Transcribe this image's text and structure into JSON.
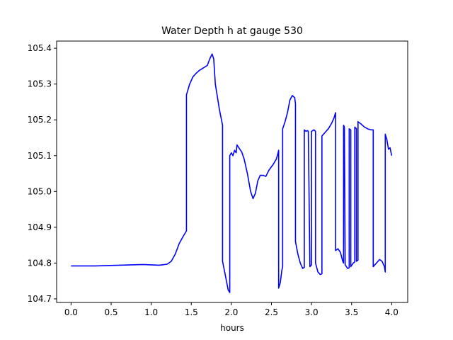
{
  "chart_data": {
    "type": "line",
    "title": "Water Depth h at gauge 530",
    "xlabel": "hours",
    "ylabel": "",
    "xlim": [
      -0.18,
      4.2
    ],
    "ylim": [
      104.69,
      105.42
    ],
    "grid": false,
    "xticks": [
      0.0,
      0.5,
      1.0,
      1.5,
      2.0,
      2.5,
      3.0,
      3.5,
      4.0
    ],
    "xtick_labels": [
      "0.0",
      "0.5",
      "1.0",
      "1.5",
      "2.0",
      "2.5",
      "3.0",
      "3.5",
      "4.0"
    ],
    "yticks": [
      104.7,
      104.8,
      104.9,
      105.0,
      105.1,
      105.2,
      105.3,
      105.4
    ],
    "ytick_labels": [
      "104.7",
      "104.8",
      "104.9",
      "105.0",
      "105.1",
      "105.2",
      "105.3",
      "105.4"
    ],
    "series": [
      {
        "name": "",
        "color": "#0000ff",
        "points": [
          [
            0.0,
            104.792
          ],
          [
            0.3,
            104.792
          ],
          [
            0.6,
            104.794
          ],
          [
            0.9,
            104.796
          ],
          [
            1.0,
            104.795
          ],
          [
            1.1,
            104.794
          ],
          [
            1.2,
            104.797
          ],
          [
            1.25,
            104.805
          ],
          [
            1.3,
            104.825
          ],
          [
            1.35,
            104.855
          ],
          [
            1.4,
            104.875
          ],
          [
            1.44,
            104.89
          ],
          [
            1.44,
            105.27
          ],
          [
            1.48,
            105.3
          ],
          [
            1.52,
            105.32
          ],
          [
            1.56,
            105.33
          ],
          [
            1.6,
            105.338
          ],
          [
            1.65,
            105.345
          ],
          [
            1.7,
            105.352
          ],
          [
            1.73,
            105.37
          ],
          [
            1.76,
            105.384
          ],
          [
            1.78,
            105.37
          ],
          [
            1.8,
            105.3
          ],
          [
            1.85,
            105.23
          ],
          [
            1.89,
            105.185
          ],
          [
            1.89,
            104.805
          ],
          [
            1.93,
            104.76
          ],
          [
            1.96,
            104.725
          ],
          [
            1.98,
            104.718
          ],
          [
            1.98,
            105.1
          ],
          [
            2.0,
            105.108
          ],
          [
            2.02,
            105.1
          ],
          [
            2.04,
            105.115
          ],
          [
            2.06,
            105.108
          ],
          [
            2.07,
            105.13
          ],
          [
            2.1,
            105.12
          ],
          [
            2.13,
            105.11
          ],
          [
            2.16,
            105.09
          ],
          [
            2.2,
            105.05
          ],
          [
            2.24,
            105.0
          ],
          [
            2.27,
            104.98
          ],
          [
            2.3,
            104.995
          ],
          [
            2.33,
            105.03
          ],
          [
            2.36,
            105.045
          ],
          [
            2.4,
            105.045
          ],
          [
            2.43,
            105.042
          ],
          [
            2.47,
            105.06
          ],
          [
            2.52,
            105.075
          ],
          [
            2.56,
            105.09
          ],
          [
            2.58,
            105.105
          ],
          [
            2.59,
            105.115
          ],
          [
            2.59,
            104.73
          ],
          [
            2.61,
            104.745
          ],
          [
            2.63,
            104.78
          ],
          [
            2.64,
            104.79
          ],
          [
            2.64,
            105.175
          ],
          [
            2.67,
            105.195
          ],
          [
            2.7,
            105.22
          ],
          [
            2.73,
            105.255
          ],
          [
            2.76,
            105.268
          ],
          [
            2.79,
            105.262
          ],
          [
            2.8,
            105.245
          ],
          [
            2.8,
            104.86
          ],
          [
            2.83,
            104.825
          ],
          [
            2.86,
            104.8
          ],
          [
            2.89,
            104.785
          ],
          [
            2.91,
            104.788
          ],
          [
            2.91,
            105.172
          ],
          [
            2.93,
            105.168
          ],
          [
            2.95,
            105.17
          ],
          [
            2.96,
            105.168
          ],
          [
            2.98,
            104.79
          ],
          [
            3.0,
            104.795
          ],
          [
            3.0,
            105.168
          ],
          [
            3.03,
            105.172
          ],
          [
            3.05,
            105.168
          ],
          [
            3.05,
            104.8
          ],
          [
            3.08,
            104.775
          ],
          [
            3.11,
            104.768
          ],
          [
            3.13,
            104.77
          ],
          [
            3.13,
            105.155
          ],
          [
            3.17,
            105.165
          ],
          [
            3.21,
            105.175
          ],
          [
            3.25,
            105.19
          ],
          [
            3.28,
            105.205
          ],
          [
            3.3,
            105.22
          ],
          [
            3.3,
            104.835
          ],
          [
            3.33,
            104.84
          ],
          [
            3.36,
            104.83
          ],
          [
            3.39,
            104.805
          ],
          [
            3.4,
            104.8
          ],
          [
            3.4,
            105.185
          ],
          [
            3.41,
            105.18
          ],
          [
            3.42,
            104.795
          ],
          [
            3.45,
            104.785
          ],
          [
            3.47,
            104.787
          ],
          [
            3.47,
            105.175
          ],
          [
            3.49,
            105.172
          ],
          [
            3.49,
            104.79
          ],
          [
            3.52,
            104.8
          ],
          [
            3.54,
            104.803
          ],
          [
            3.54,
            105.18
          ],
          [
            3.56,
            105.175
          ],
          [
            3.56,
            104.805
          ],
          [
            3.58,
            104.808
          ],
          [
            3.58,
            105.195
          ],
          [
            3.62,
            105.188
          ],
          [
            3.66,
            105.18
          ],
          [
            3.7,
            105.175
          ],
          [
            3.74,
            105.172
          ],
          [
            3.77,
            105.172
          ],
          [
            3.77,
            104.79
          ],
          [
            3.81,
            104.8
          ],
          [
            3.85,
            104.81
          ],
          [
            3.88,
            104.805
          ],
          [
            3.91,
            104.79
          ],
          [
            3.92,
            104.775
          ],
          [
            3.92,
            105.16
          ],
          [
            3.94,
            105.145
          ],
          [
            3.96,
            105.118
          ],
          [
            3.98,
            105.122
          ],
          [
            4.0,
            105.1
          ]
        ]
      }
    ]
  }
}
